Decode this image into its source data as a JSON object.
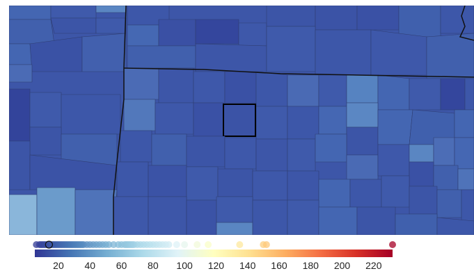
{
  "map": {
    "fill_colors": {
      "dark": "#3748a0",
      "mid": "#3d56a8",
      "light": "#4f72b8",
      "pale": "#6b9bcb",
      "palest": "#86b4d9",
      "border": "#2f3e73",
      "state_line": "#111111"
    },
    "highlighted_region": "selected-county"
  },
  "legend": {
    "scale": "RdYlBu reversed",
    "domain": [
      5,
      232
    ],
    "ticks": [
      "20",
      "40",
      "60",
      "80",
      "100",
      "120",
      "140",
      "160",
      "180",
      "200",
      "220"
    ],
    "tick_values": [
      20,
      40,
      60,
      80,
      100,
      120,
      140,
      160,
      180,
      200,
      220
    ],
    "dots": [
      6,
      8,
      9,
      10,
      11,
      12,
      13,
      14,
      15,
      16,
      17,
      18,
      19,
      20,
      21,
      22,
      23,
      24,
      25,
      26,
      27,
      28,
      29,
      30,
      31,
      32,
      33,
      34,
      35,
      36,
      38,
      40,
      42,
      44,
      46,
      48,
      50,
      52,
      55,
      58,
      60,
      62,
      63,
      64,
      65,
      66,
      67,
      68,
      70,
      72,
      74,
      76,
      78,
      80,
      82,
      84,
      86,
      88,
      90,
      95,
      100,
      108,
      115,
      135,
      150,
      152,
      232
    ],
    "selected_value": 14
  }
}
